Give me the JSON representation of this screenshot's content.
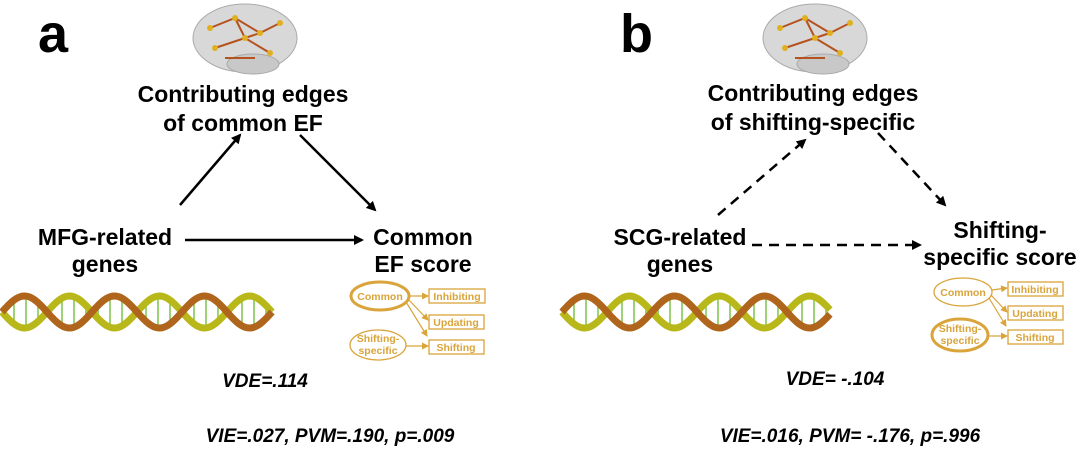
{
  "colors": {
    "accent": "#d9a43a",
    "arrow": "#000000",
    "dna_yellow": "#b8b81a",
    "dna_brown": "#b0651c",
    "dna_rung": "#7cc24a"
  },
  "panel_a": {
    "label": "a",
    "top_node": [
      "Contributing edges",
      "of common EF"
    ],
    "left_node": [
      "MFG-related",
      "genes"
    ],
    "right_node": [
      "Common",
      "EF score"
    ],
    "arrow_style": "solid",
    "legend": {
      "factors": [
        "Common",
        "Shifting-",
        "specific"
      ],
      "tasks": [
        "Inhibiting",
        "Updating",
        "Shifting"
      ],
      "highlighted": "Common"
    },
    "vde": "VDE=.114",
    "stats": "VIE=.027, PVM=.190, p=.009"
  },
  "panel_b": {
    "label": "b",
    "top_node": [
      "Contributing edges",
      "of shifting-specific"
    ],
    "left_node": [
      "SCG-related",
      "genes"
    ],
    "right_node": [
      "Shifting-",
      "specific score"
    ],
    "arrow_style": "dashed",
    "legend": {
      "factors": [
        "Common",
        "Shifting-",
        "specific"
      ],
      "tasks": [
        "Inhibiting",
        "Updating",
        "Shifting"
      ],
      "highlighted": "Shifting-specific"
    },
    "vde": "VDE= -.104",
    "stats": "VIE=.016, PVM= -.176, p=.996"
  }
}
